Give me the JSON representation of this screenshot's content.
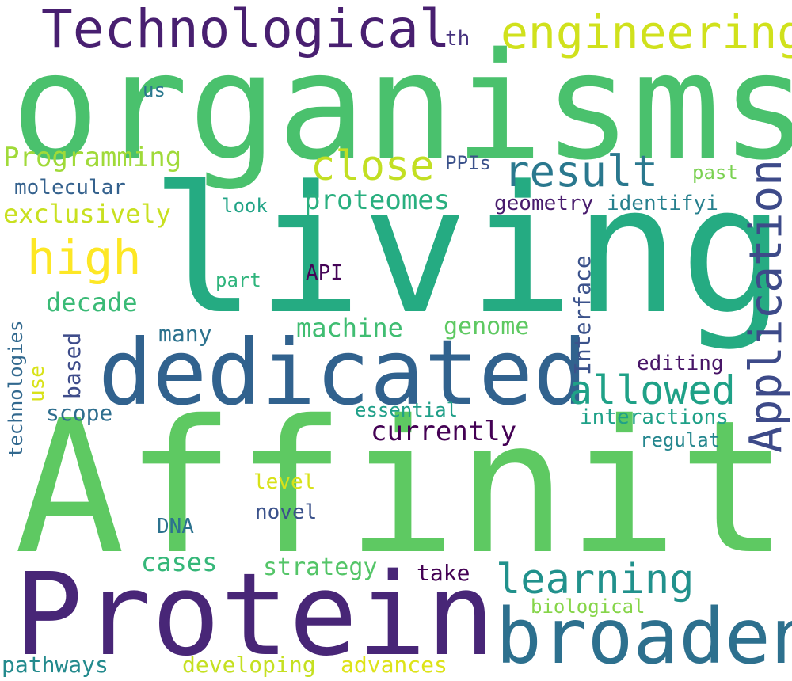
{
  "colors": {
    "background": "#ffffff",
    "dark_purple": "#440154",
    "indigo": "#46327e",
    "blue": "#365c8d",
    "teal_blue": "#277f8e",
    "teal": "#1fa187",
    "green": "#4ac16d",
    "light_green": "#a0da39",
    "yellow": "#fde725"
  },
  "words": {
    "organisms": "organisms",
    "living": "living",
    "affinity": "Affinity",
    "protein": "Protein",
    "dedicated": "dedicated",
    "broaden": "broaden",
    "technological": "Technological",
    "engineering": "engineering",
    "application": "Application",
    "result": "result",
    "allowed": "allowed",
    "close": "close",
    "high": "high",
    "learning": "learning",
    "programming": "Programming",
    "molecular": "molecular",
    "exclusively": "exclusively",
    "proteomes": "proteomes",
    "decade": "decade",
    "machine": "machine",
    "genome": "genome",
    "currently": "currently",
    "interface": "Interface",
    "scope": "scope",
    "cases": "cases",
    "strategy": "strategy",
    "take": "take",
    "developing": "developing",
    "advances": "advances",
    "pathways": "pathways",
    "technologies": "technologies",
    "use": "use",
    "based": "based",
    "many": "many",
    "part": "part",
    "look": "look",
    "api": "API",
    "ppis": "PPIs",
    "past": "past",
    "geometry": "geometry",
    "identifyi": "identifyi",
    "th": "th",
    "us": "us",
    "editing": "editing",
    "interactions": "interactions",
    "essential": "essential",
    "regulat": "regulat",
    "level": "level",
    "novel": "novel",
    "dna": "DNA",
    "biological": "biological"
  }
}
